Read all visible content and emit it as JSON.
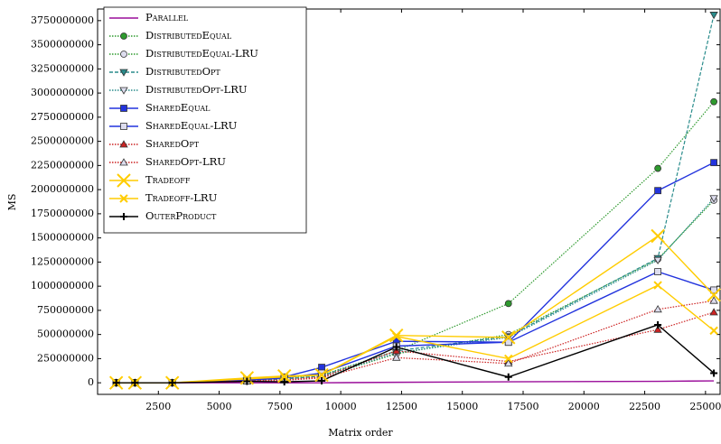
{
  "chart_data": {
    "type": "line",
    "x_label": "Matrix order",
    "y_label": "MS",
    "x": [
      768,
      1536,
      3072,
      6144,
      7680,
      9216,
      12288,
      16896,
      23040,
      25344
    ],
    "xlim": [
      0,
      25600
    ],
    "xticks": [
      2500,
      5000,
      7500,
      10000,
      12500,
      15000,
      17500,
      20000,
      22500,
      25000
    ],
    "ylim": [
      -120000000,
      3870000000
    ],
    "yticks": [
      0,
      250000000,
      500000000,
      750000000,
      1000000000,
      1250000000,
      1500000000,
      1750000000,
      2000000000,
      2250000000,
      2500000000,
      2750000000,
      3000000000,
      3250000000,
      3500000000,
      3750000000
    ],
    "legend": "upper-left",
    "series": [
      {
        "name": "Parallel",
        "color": "#9a0d9a",
        "style": "solid",
        "marker": "none",
        "values": [
          0,
          0,
          0,
          0,
          0,
          0,
          5000000,
          10000000,
          15000000,
          20000000
        ]
      },
      {
        "name": "DistributedEqual",
        "color": "#2e9a2e",
        "style": "dotted",
        "marker": "circle",
        "values": [
          0,
          0,
          0,
          20000000,
          50000000,
          80000000,
          330000000,
          820000000,
          2220000000,
          2910000000
        ]
      },
      {
        "name": "DistributedEqual-LRU",
        "color": "#2e9a2e",
        "style": "dotted",
        "marker": "circle-open",
        "values": [
          0,
          0,
          0,
          20000000,
          40000000,
          60000000,
          300000000,
          500000000,
          1280000000,
          1890000000
        ]
      },
      {
        "name": "DistributedOpt",
        "color": "#2a8c8c",
        "style": "dashed",
        "marker": "tri-down",
        "values": [
          0,
          0,
          0,
          20000000,
          40000000,
          70000000,
          330000000,
          480000000,
          1290000000,
          3810000000
        ]
      },
      {
        "name": "DistributedOpt-LRU",
        "color": "#2a8c8c",
        "style": "dotted",
        "marker": "tri-down-open",
        "values": [
          0,
          0,
          0,
          20000000,
          40000000,
          60000000,
          310000000,
          470000000,
          1270000000,
          1910000000
        ]
      },
      {
        "name": "SharedEqual",
        "color": "#2233dd",
        "style": "solid",
        "marker": "square",
        "values": [
          0,
          0,
          0,
          30000000,
          60000000,
          160000000,
          430000000,
          420000000,
          1990000000,
          2280000000
        ]
      },
      {
        "name": "SharedEqual-LRU",
        "color": "#2233dd",
        "style": "solid",
        "marker": "square-open",
        "values": [
          0,
          0,
          0,
          25000000,
          50000000,
          100000000,
          380000000,
          420000000,
          1150000000,
          960000000
        ]
      },
      {
        "name": "SharedOpt",
        "color": "#cc2222",
        "style": "dotted",
        "marker": "tri-up",
        "values": [
          0,
          0,
          0,
          20000000,
          30000000,
          60000000,
          330000000,
          220000000,
          550000000,
          730000000
        ]
      },
      {
        "name": "SharedOpt-LRU",
        "color": "#cc2222",
        "style": "dotted",
        "marker": "tri-up-open",
        "values": [
          0,
          0,
          0,
          15000000,
          25000000,
          50000000,
          260000000,
          200000000,
          760000000,
          850000000
        ]
      },
      {
        "name": "Tradeoff",
        "color": "#ffcc00",
        "style": "solid",
        "marker": "x-big",
        "values": [
          0,
          0,
          0,
          50000000,
          70000000,
          80000000,
          490000000,
          470000000,
          1520000000,
          910000000
        ]
      },
      {
        "name": "Tradeoff-LRU",
        "color": "#ffcc00",
        "style": "solid",
        "marker": "x",
        "values": [
          0,
          0,
          0,
          40000000,
          60000000,
          80000000,
          480000000,
          250000000,
          1010000000,
          540000000
        ]
      },
      {
        "name": "OuterProduct",
        "color": "#000000",
        "style": "solid",
        "marker": "plus",
        "values": [
          0,
          0,
          0,
          15000000,
          10000000,
          20000000,
          370000000,
          60000000,
          600000000,
          100000000
        ]
      }
    ]
  }
}
